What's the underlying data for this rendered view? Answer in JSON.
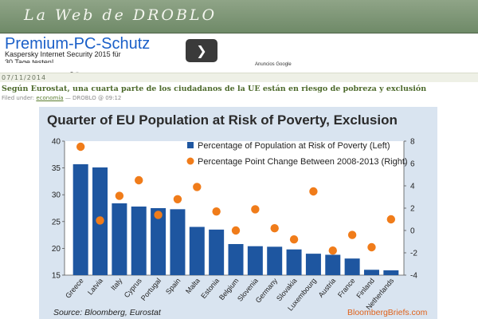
{
  "site": {
    "title": "La Web de DROBLO"
  },
  "ad": {
    "title": "Premium-PC-Schutz",
    "line1": "Kaspersky Internet Security 2015 für",
    "line2": "30 Tage testen!",
    "next_icon": "chevron-right-icon",
    "google_label": "Anuncios Google"
  },
  "post": {
    "date": "07/11/2014",
    "title": "Según Eurostat, una cuarta parte de los ciudadanos de la UE están en riesgo de pobreza y exclusión",
    "filed_prefix": "Filed under:",
    "category": "economía",
    "author_time": "— DROBLO @ 09:12"
  },
  "chart_data": {
    "type": "bar",
    "title": "Quarter of EU Population at Risk of Poverty, Exclusion",
    "categories": [
      "Greece",
      "Latvia",
      "Italy",
      "Cyprus",
      "Portugal",
      "Spain",
      "Malta",
      "Estonia",
      "Belgium",
      "Slovenia",
      "Germany",
      "Slovakia",
      "Luxembourg",
      "Austria",
      "France",
      "Finland",
      "Netherlands"
    ],
    "series": [
      {
        "name": "Percentage of Population at Risk of Poverty (Left)",
        "type": "bar",
        "axis": "left",
        "color": "#1e56a0",
        "values": [
          35.7,
          35.1,
          28.4,
          27.8,
          27.5,
          27.3,
          24.0,
          23.5,
          20.8,
          20.4,
          20.3,
          19.8,
          19.0,
          18.8,
          18.1,
          16.0,
          15.9
        ]
      },
      {
        "name": "Percentage Point Change Between 2008-2013 (Right)",
        "type": "scatter",
        "axis": "right",
        "color": "#f07c1a",
        "values": [
          7.5,
          0.9,
          3.1,
          4.5,
          1.4,
          2.8,
          3.9,
          1.7,
          0.0,
          1.9,
          0.2,
          -0.8,
          3.5,
          -1.8,
          -0.4,
          -1.5,
          1.0
        ]
      }
    ],
    "ylim_left": [
      15,
      40
    ],
    "yticks_left": [
      "15",
      "20",
      "25",
      "30",
      "35",
      "40"
    ],
    "ylim_right": [
      -4,
      8
    ],
    "yticks_right": [
      "-4",
      "-2",
      "0",
      "2",
      "4",
      "6",
      "8"
    ],
    "legend_position": "top-right",
    "source": "Source: Bloomberg, Eurostat",
    "brand": "BloombergBriefs.com"
  }
}
